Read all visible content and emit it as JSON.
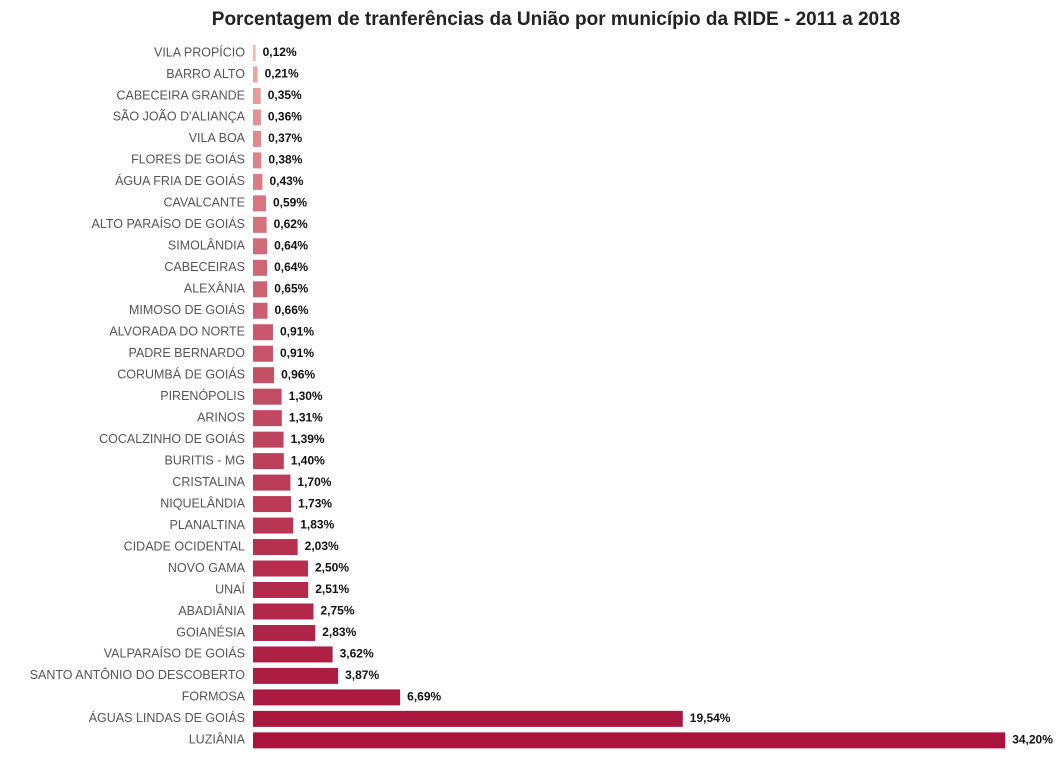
{
  "chart_data": {
    "type": "hbar",
    "title": "Porcentagem de tranferências da União por município da RIDE - 2011 a 2018",
    "categories": [
      "VILA PROPÍCIO",
      "BARRO ALTO",
      "CABECEIRA GRANDE",
      "SÃO JOÃO D'ALIANÇA",
      "VILA BOA",
      "FLORES DE GOIÁS",
      "ÁGUA FRIA DE GOIÁS",
      "CAVALCANTE",
      "ALTO PARAÍSO DE GOIÁS",
      "SIMOLÂNDIA",
      "CABECEIRAS",
      "ALEXÂNIA",
      "MIMOSO DE GOIÁS",
      "ALVORADA DO NORTE",
      "PADRE BERNARDO",
      "CORUMBÁ DE GOIÁS",
      "PIRENÓPOLIS",
      "ARINOS",
      "COCALZINHO DE GOIÁS",
      "BURITIS - MG",
      "CRISTALINA",
      "NIQUELÂNDIA",
      "PLANALTINA",
      "CIDADE OCIDENTAL",
      "NOVO GAMA",
      "UNAÍ",
      "ABADIÂNIA",
      "GOIANÉSIA",
      "VALPARAÍSO DE GOIÁS",
      "SANTO ANTÔNIO DO DESCOBERTO",
      "FORMOSA",
      "ÁGUAS LINDAS DE GOIÁS",
      "LUZIÂNIA"
    ],
    "values": [
      0.12,
      0.21,
      0.35,
      0.36,
      0.37,
      0.38,
      0.43,
      0.59,
      0.62,
      0.64,
      0.64,
      0.65,
      0.66,
      0.91,
      0.91,
      0.96,
      1.3,
      1.31,
      1.39,
      1.4,
      1.7,
      1.73,
      1.83,
      2.03,
      2.5,
      2.51,
      2.75,
      2.83,
      3.62,
      3.87,
      6.69,
      19.54,
      34.2
    ],
    "value_labels": [
      "0,12%",
      "0,21%",
      "0,35%",
      "0,36%",
      "0,37%",
      "0,38%",
      "0,43%",
      "0,59%",
      "0,62%",
      "0,64%",
      "0,64%",
      "0,65%",
      "0,66%",
      "0,91%",
      "0,91%",
      "0,96%",
      "1,30%",
      "1,31%",
      "1,39%",
      "1,40%",
      "1,70%",
      "1,73%",
      "1,83%",
      "2,03%",
      "2,50%",
      "2,51%",
      "2,75%",
      "2,83%",
      "3,62%",
      "3,87%",
      "6,69%",
      "19,54%",
      "34,20%"
    ],
    "color_range": [
      "#f7b8ae",
      "#a8143c"
    ],
    "xlim": [
      0,
      36.6
    ]
  }
}
